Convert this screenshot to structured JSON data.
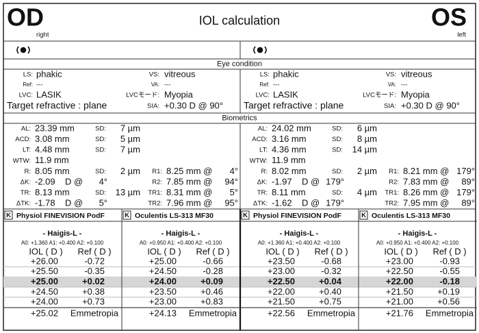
{
  "header": {
    "od": "OD",
    "od_sub": "right",
    "title": "IOL calculation",
    "os": "OS",
    "os_sub": "left"
  },
  "sections": {
    "eye_condition": "Eye condition",
    "biometrics": "Biometrics"
  },
  "eyes": [
    {
      "condition": {
        "rows": [
          [
            "LS:",
            "phakic",
            "VS:",
            "vitreous"
          ],
          [
            "Ref:",
            "---",
            "VA:",
            "---"
          ],
          [
            "LVC:",
            "LASIK",
            "LVCモード:",
            "Myopia"
          ]
        ],
        "target": "Target refractive : plane",
        "sia_label": "SIA:",
        "sia": "+0.30 D @ 90°"
      },
      "biometrics": [
        {
          "label": "AL:",
          "value": "23.39 mm",
          "sd_label": "SD:",
          "sd": "7 µm"
        },
        {
          "label": "ACD:",
          "value": "3.08 mm",
          "sd_label": "SD:",
          "sd": "5 µm"
        },
        {
          "label": "LT:",
          "value": "4.48 mm",
          "sd_label": "SD:",
          "sd": "7 µm"
        },
        {
          "label": "WTW:",
          "value": "11.9 mm"
        },
        {
          "label": "R:",
          "value": "8.05 mm",
          "sd_label": "SD:",
          "sd": "2 µm",
          "k_label": "R1:",
          "k": "8.25 mm @",
          "k_axis": "4°"
        },
        {
          "label": "ΔK:",
          "value": "-2.09",
          "unit": "D @",
          "axis": "4°",
          "k_label": "R2:",
          "k": "7.85 mm @",
          "k_axis": "94°"
        },
        {
          "label": "TR:",
          "value": "8.13 mm",
          "sd_label": "SD:",
          "sd": "13 µm",
          "k_label": "TR1:",
          "k": "8.31 mm @",
          "k_axis": "5°"
        },
        {
          "label": "ΔTK:",
          "value": "-1.78",
          "unit": "D @",
          "axis": "5°",
          "k_label": "TR2:",
          "k": "7.96 mm @",
          "k_axis": "95°"
        }
      ],
      "lenses": [
        {
          "k": "K",
          "name": "Physiol FINEVISION PodF",
          "formula": "- Haigis-L -",
          "constants": "A0: +1.360  A1: +0.400  A2: +0.100",
          "headers": [
            "IOL ( D )",
            "Ref ( D )"
          ],
          "rows": [
            [
              "+26.00",
              "-0.72"
            ],
            [
              "+25.50",
              "-0.35"
            ],
            [
              "+25.00",
              "+0.02"
            ],
            [
              "+24.50",
              "+0.38"
            ],
            [
              "+24.00",
              "+0.73"
            ]
          ],
          "highlight": 2,
          "emmetropia": [
            "+25.02",
            "Emmetropia"
          ]
        },
        {
          "k": "K",
          "name": "Oculentis LS-313 MF30",
          "formula": "- Haigis-L -",
          "constants": "A0: +0.950  A1: +0.400  A2: +0.100",
          "headers": [
            "IOL ( D )",
            "Ref ( D )"
          ],
          "rows": [
            [
              "+25.00",
              "-0.66"
            ],
            [
              "+24.50",
              "-0.28"
            ],
            [
              "+24.00",
              "+0.09"
            ],
            [
              "+23.50",
              "+0.46"
            ],
            [
              "+23.00",
              "+0.83"
            ]
          ],
          "highlight": 2,
          "emmetropia": [
            "+24.13",
            "Emmetropia"
          ]
        }
      ]
    },
    {
      "condition": {
        "rows": [
          [
            "LS:",
            "phakic",
            "VS:",
            "vitreous"
          ],
          [
            "Ref:",
            "---",
            "VA:",
            "---"
          ],
          [
            "LVC:",
            "LASIK",
            "LVCモード:",
            "Myopia"
          ]
        ],
        "target": "Target refractive : plane",
        "sia_label": "SIA:",
        "sia": "+0.30 D @ 90°"
      },
      "biometrics": [
        {
          "label": "AL:",
          "value": "24.02 mm",
          "sd_label": "SD:",
          "sd": "6 µm"
        },
        {
          "label": "ACD:",
          "value": "3.16 mm",
          "sd_label": "SD:",
          "sd": "8 µm"
        },
        {
          "label": "LT:",
          "value": "4.36 mm",
          "sd_label": "SD:",
          "sd": "14 µm"
        },
        {
          "label": "WTW:",
          "value": "11.9 mm"
        },
        {
          "label": "R:",
          "value": "8.02 mm",
          "sd_label": "SD:",
          "sd": "2 µm",
          "k_label": "R1:",
          "k": "8.21 mm @",
          "k_axis": "179°"
        },
        {
          "label": "ΔK:",
          "value": "-1.97",
          "unit": "D @",
          "axis": "179°",
          "k_label": "R2:",
          "k": "7.83 mm @",
          "k_axis": "89°"
        },
        {
          "label": "TR:",
          "value": "8.11 mm",
          "sd_label": "SD:",
          "sd": "4 µm",
          "k_label": "TR1:",
          "k": "8.26 mm @",
          "k_axis": "179°"
        },
        {
          "label": "ΔTK:",
          "value": "-1.62",
          "unit": "D @",
          "axis": "179°",
          "k_label": "TR2:",
          "k": "7.95 mm @",
          "k_axis": "89°"
        }
      ],
      "lenses": [
        {
          "k": "K",
          "name": "Physiol FINEVISION PodF",
          "formula": "- Haigis-L -",
          "constants": "A0: +1.360  A1: +0.400  A2: +0.100",
          "headers": [
            "IOL ( D )",
            "Ref ( D )"
          ],
          "rows": [
            [
              "+23.50",
              "-0.68"
            ],
            [
              "+23.00",
              "-0.32"
            ],
            [
              "+22.50",
              "+0.04"
            ],
            [
              "+22.00",
              "+0.40"
            ],
            [
              "+21.50",
              "+0.75"
            ]
          ],
          "highlight": 2,
          "emmetropia": [
            "+22.56",
            "Emmetropia"
          ]
        },
        {
          "k": "K",
          "name": "Oculentis LS-313 MF30",
          "formula": "- Haigis-L -",
          "constants": "A0: +0.950  A1: +0.400  A2: +0.100",
          "headers": [
            "IOL ( D )",
            "Ref ( D )"
          ],
          "rows": [
            [
              "+23.00",
              "-0.93"
            ],
            [
              "+22.50",
              "-0.55"
            ],
            [
              "+22.00",
              "-0.18"
            ],
            [
              "+21.50",
              "+0.19"
            ],
            [
              "+21.00",
              "+0.56"
            ]
          ],
          "highlight": 2,
          "emmetropia": [
            "+21.76",
            "Emmetropia"
          ]
        }
      ]
    }
  ]
}
